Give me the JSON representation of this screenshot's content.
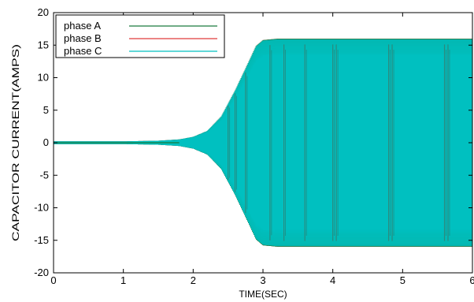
{
  "chart_data": {
    "type": "line",
    "title": "",
    "xlabel": "TIME(SEC)",
    "ylabel": "CAPACITOR CURRENT(AMPS)",
    "xlim": [
      0,
      6
    ],
    "ylim": [
      -20,
      20
    ],
    "x_ticks": [
      "0",
      "1",
      "2",
      "3",
      "4",
      "5",
      "6"
    ],
    "y_ticks": [
      "-20",
      "-15",
      "-10",
      "-5",
      "0",
      "5",
      "10",
      "15",
      "20"
    ],
    "grid": false,
    "legend_position": "top-left",
    "series": [
      {
        "name": "phase A",
        "color": "#1a7a3e"
      },
      {
        "name": "phase B",
        "color": "#e03a3a"
      },
      {
        "name": "phase C",
        "color": "#00c0c0"
      }
    ],
    "envelope": {
      "x": [
        0,
        0.5,
        1.0,
        1.5,
        1.8,
        2.0,
        2.2,
        2.4,
        2.6,
        2.8,
        2.9,
        3.0,
        3.2,
        6.0
      ],
      "amp": [
        0.2,
        0.2,
        0.2,
        0.3,
        0.5,
        0.9,
        1.8,
        4.0,
        8.0,
        12.5,
        14.8,
        15.7,
        15.9,
        15.9
      ]
    },
    "dark_bursts": [
      2.5,
      2.6,
      2.75,
      3.1,
      3.3,
      3.6,
      4.0,
      4.05,
      4.8,
      4.85,
      5.6,
      5.65
    ]
  }
}
